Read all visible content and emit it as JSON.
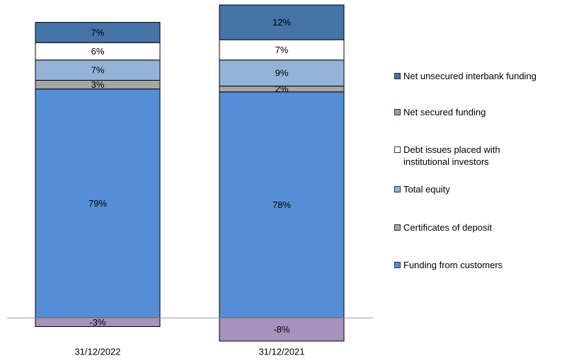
{
  "chart_data": {
    "type": "stacked_bar",
    "categories": [
      "31/12/2022",
      "31/12/2021"
    ],
    "series": [
      {
        "name": "Funding from customers",
        "color": "#558ed5",
        "values": [
          79,
          78
        ],
        "value_labels": [
          "79%",
          "78%"
        ]
      },
      {
        "name": "Certificates of deposit",
        "color": "#a6a6a6",
        "values": [
          3,
          2
        ],
        "value_labels": [
          "3%",
          "2%"
        ]
      },
      {
        "name": "Total equity",
        "color": "#95b3d7",
        "values": [
          7,
          9
        ],
        "value_labels": [
          "7%",
          "9%"
        ]
      },
      {
        "name": "Debt issues placed with institutional investors",
        "color": "#ffffff",
        "values": [
          6,
          7
        ],
        "value_labels": [
          "6%",
          "7%"
        ]
      },
      {
        "name": "Net secured funding",
        "color": "#a692bd",
        "values": [
          -3,
          -8
        ],
        "value_labels": [
          "-3%",
          "-8%"
        ]
      },
      {
        "name": "Net unsecured interbank funding",
        "color": "#4572a7",
        "values": [
          7,
          12
        ],
        "value_labels": [
          "7%",
          "12%"
        ]
      }
    ]
  }
}
